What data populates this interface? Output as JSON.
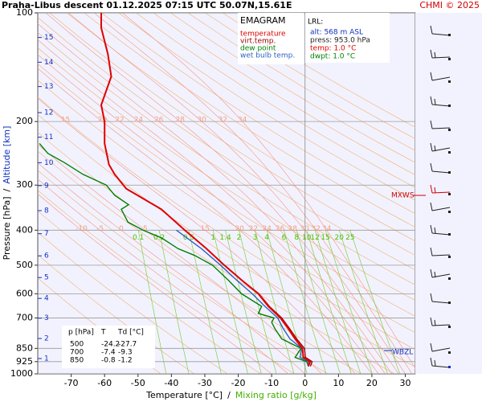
{
  "chart_data": {
    "type": "line",
    "title": "Praha-Libus   descent   01.12.2025 07:15 UTC   50.07N,15.61E",
    "credit": "CHMI © 2025",
    "xlabel_parts": [
      "Temperature [°C]",
      "/",
      "Mixing ratio [g/kg]"
    ],
    "ylabel_parts": [
      "Pressure [hPa]",
      "/",
      "Altitude [km]"
    ],
    "xlim": [
      -80,
      33
    ],
    "xticks": [
      -70,
      -60,
      -50,
      -40,
      -30,
      -20,
      -10,
      0,
      10,
      20,
      30
    ],
    "ylim": [
      100,
      1000
    ],
    "yticks": [
      100,
      200,
      300,
      400,
      500,
      600,
      700,
      850,
      925,
      1000
    ],
    "log_y": true,
    "grid": true,
    "legend": {
      "title": "EMAGRAM"
    },
    "series": [
      {
        "name": "temperature",
        "color": "#e00000",
        "pressure": [
          953,
          925,
          900,
          850,
          800,
          750,
          700,
          650,
          600,
          550,
          500,
          450,
          400,
          350,
          307,
          280,
          263,
          230,
          200,
          180,
          150,
          130,
          110,
          100
        ],
        "values": [
          1.0,
          1.5,
          -0.5,
          -0.8,
          -3.0,
          -5.0,
          -7.4,
          -11.0,
          -14.0,
          -19.0,
          -24.2,
          -29.5,
          -36.0,
          -43.0,
          -53.5,
          -57.0,
          -58.7,
          -60.0,
          -60.0,
          -61.0,
          -58.0,
          -59.0,
          -61.0,
          -61.0
        ]
      },
      {
        "name": "virt.temp.",
        "color": "#a00000",
        "pressure": [
          953,
          925,
          900,
          850,
          800,
          750,
          700,
          650,
          600,
          550,
          500,
          450,
          400,
          350,
          307,
          280,
          263,
          230,
          200,
          180,
          150,
          130,
          110,
          100
        ],
        "values": [
          1.6,
          2.1,
          0.1,
          -0.2,
          -2.5,
          -4.6,
          -7.0,
          -10.7,
          -13.8,
          -18.9,
          -24.1,
          -29.5,
          -36.0,
          -43.0,
          -53.5,
          -57.0,
          -58.7,
          -60.0,
          -60.0,
          -61.0,
          -58.0,
          -59.0,
          -61.0,
          -61.0
        ]
      },
      {
        "name": "dew point",
        "color": "#008000",
        "pressure": [
          953,
          925,
          900,
          850,
          800,
          750,
          720,
          700,
          680,
          650,
          600,
          550,
          500,
          470,
          450,
          420,
          400,
          380,
          350,
          340,
          320,
          300,
          280,
          260,
          245,
          230
        ],
        "values": [
          1.0,
          0.5,
          -3.0,
          -1.2,
          -7.0,
          -9.0,
          -10.0,
          -9.3,
          -14.0,
          -13.0,
          -19.0,
          -23.0,
          -27.7,
          -33.0,
          -38.0,
          -43.0,
          -48.5,
          -53.0,
          -55.0,
          -52.8,
          -57.0,
          -59.5,
          -66.5,
          -72.0,
          -77.0,
          -79.5
        ]
      },
      {
        "name": "wet bulb temp.",
        "color": "#3060c0",
        "pressure": [
          953,
          925,
          900,
          850,
          800,
          750,
          700,
          650,
          600,
          550,
          500,
          450,
          400
        ],
        "values": [
          1.0,
          1.0,
          -1.5,
          -1.0,
          -4.5,
          -6.5,
          -8.2,
          -12.0,
          -15.8,
          -20.5,
          -25.3,
          -31.0,
          -38.5
        ]
      }
    ],
    "altitude_km": [
      1,
      2,
      3,
      4,
      5,
      6,
      7,
      8,
      9,
      10,
      11,
      12,
      13,
      14,
      15
    ],
    "altitude_pressure": [
      907,
      798,
      701,
      618,
      541,
      471,
      409,
      353,
      301,
      260,
      221,
      189,
      160,
      137,
      117
    ],
    "mixing_ratios": [
      0.1,
      0.2,
      0.5,
      1,
      1.4,
      2,
      3,
      4,
      6,
      8,
      10,
      12,
      15,
      20,
      25
    ],
    "pseudoadiabats": [
      -10,
      -5,
      0,
      5,
      15,
      20,
      22,
      24,
      26,
      28,
      30,
      32,
      34
    ],
    "lrl": {
      "title": "LRL:",
      "lines": [
        "alt: 568 m ASL",
        "press: 953.0 hPa",
        "temp: 1.0 °C",
        "dwpt: 1.0 °C"
      ]
    },
    "table": {
      "header": [
        "p [hPa]",
        "T",
        "Td [°C]"
      ],
      "rows": [
        [
          500,
          -24.2,
          -27.7
        ],
        [
          700,
          -7.4,
          -9.3
        ],
        [
          850,
          -0.8,
          -1.2
        ]
      ]
    },
    "annotations": [
      "MXWS",
      "WBZL"
    ]
  }
}
